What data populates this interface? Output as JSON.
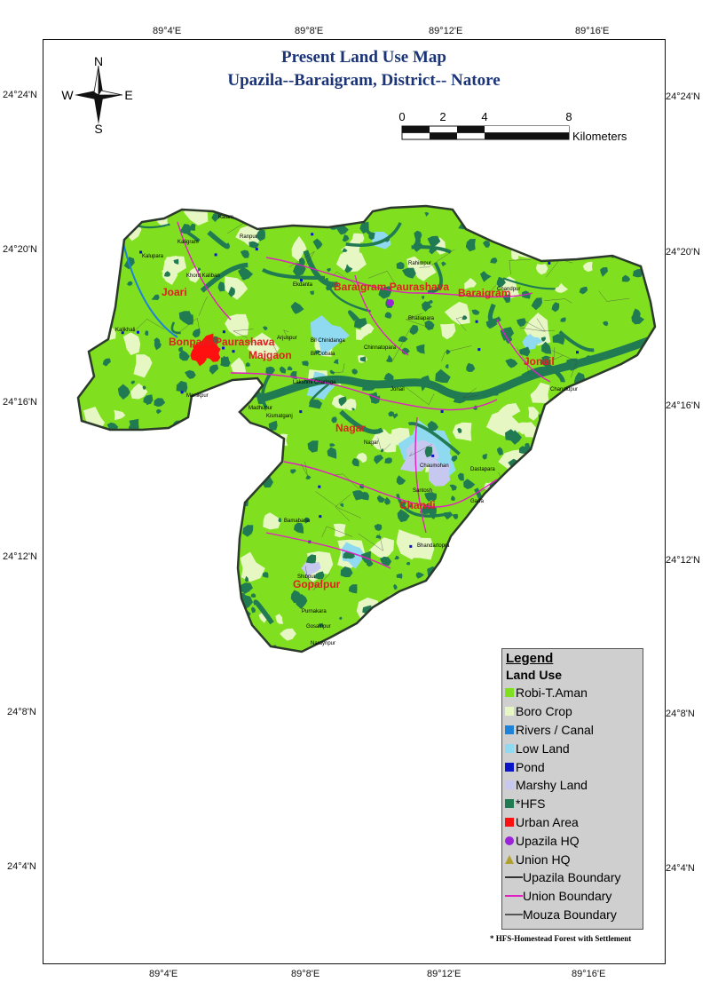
{
  "title": {
    "line1": "Present  Land Use  Map",
    "line2": "Upazila--Baraigram, District-- Natore"
  },
  "graticule": {
    "longitudes": [
      "89°4'E",
      "89°8'E",
      "89°12'E",
      "89°16'E"
    ],
    "latitudes_left": [
      "24°24'N",
      "24°20'N",
      "24°16'N",
      "24°12'N",
      "24°8'N",
      "24°4'N"
    ],
    "latitudes_right": [
      "24°24'N",
      "24°20'N",
      "24°16'N",
      "24°12'N",
      "24°8'N",
      "24°4'N"
    ]
  },
  "north_arrow": {
    "n": "N",
    "s": "S",
    "e": "E",
    "w": "W"
  },
  "scale_bar": {
    "ticks": [
      "0",
      "2",
      "4",
      "8"
    ],
    "unit": "Kilometers"
  },
  "union_labels": [
    "Joari",
    "Baraigram Paurashava",
    "Baraigram",
    "Bonpara Paurashava",
    "Majgaon",
    "Jonail",
    "Nagar",
    "Chandi",
    "Gopalpur"
  ],
  "place_labels": [
    "Kalam",
    "Kaligram",
    "Kalupara",
    "Ranpur",
    "Khord Kaliban",
    "Kalikhali",
    "Ekdanta",
    "Chinnatopara",
    "Madhupur",
    "Bil Chinidanga",
    "Bil Dobala",
    "Rahimpur",
    "Shibpur",
    "Arjunpur",
    "Jonail",
    "Chandidpur",
    "Chaumohan",
    "Dastapara",
    "Santosh",
    "Garfa",
    "Bhandartopra",
    "Gosainpur",
    "Purnakara",
    "Bamabaria",
    "Naraynpur",
    "Nagar",
    "Chandpur",
    "Bhatiapara",
    "Kismatganj",
    "Lakshmi Charinga",
    "Manikpur"
  ],
  "legend": {
    "title": "Legend",
    "subtitle": "Land Use",
    "items": [
      {
        "label": "Robi-T.Aman",
        "color": "#80e020",
        "kind": "square"
      },
      {
        "label": "Boro Crop",
        "color": "#e6f7c4",
        "kind": "square"
      },
      {
        "label": "Rivers / Canal",
        "color": "#1e82d8",
        "kind": "square"
      },
      {
        "label": "Low Land",
        "color": "#8fdaf0",
        "kind": "square"
      },
      {
        "label": "Pond",
        "color": "#0a14c8",
        "kind": "square"
      },
      {
        "label": "Marshy Land",
        "color": "#c6c8f0",
        "kind": "square"
      },
      {
        "label": "*HFS",
        "color": "#207a52",
        "kind": "square"
      },
      {
        "label": "Urban Area",
        "color": "#ff1010",
        "kind": "square"
      },
      {
        "label": "Upazila HQ",
        "color": "#9a22d8",
        "kind": "circle"
      },
      {
        "label": "Union HQ",
        "color": "#b0a030",
        "kind": "triangle"
      },
      {
        "label": "Upazila Boundary",
        "color": "#333333",
        "kind": "line"
      },
      {
        "label": "Union Boundary",
        "color": "#e020c0",
        "kind": "line"
      },
      {
        "label": "Mouza Boundary",
        "color": "#555555",
        "kind": "line"
      }
    ]
  },
  "footnote": "* HFS-Homestead Forest with Settlement",
  "colors": {
    "crop": "#80e020",
    "boro": "#e6f7c4",
    "hfs": "#207a52",
    "river": "#1e82d8",
    "lowland": "#8fdaf0",
    "marshy": "#c6c8f0",
    "urban": "#ff1010",
    "union_boundary": "#e020c0",
    "title": "#1b3478",
    "union_label": "#e02020"
  }
}
